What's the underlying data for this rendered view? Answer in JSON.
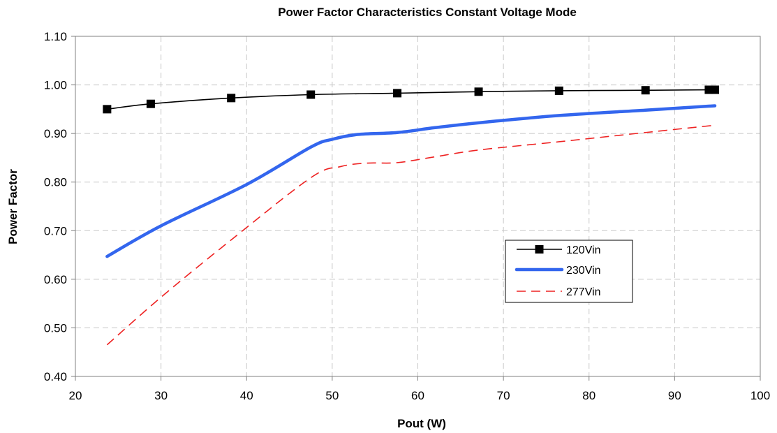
{
  "chart_data": {
    "type": "line",
    "title": "Power Factor Characteristics Constant Voltage Mode",
    "xlabel": "Pout (W)",
    "ylabel": "Power Factor",
    "xlim": [
      20,
      100
    ],
    "ylim": [
      0.4,
      1.1
    ],
    "x_ticks": [
      "20",
      "30",
      "40",
      "50",
      "60",
      "70",
      "80",
      "90",
      "100"
    ],
    "y_ticks": [
      "0.40",
      "0.50",
      "0.60",
      "0.70",
      "0.80",
      "0.90",
      "1.00",
      "1.10"
    ],
    "grid": true,
    "legend_position": "center-right",
    "series": [
      {
        "name": "120Vin",
        "color": "#000000",
        "style": "solid-with-square-markers",
        "points": [
          [
            23.7,
            0.95
          ],
          [
            28.8,
            0.961
          ],
          [
            38.2,
            0.973
          ],
          [
            47.5,
            0.98
          ],
          [
            57.6,
            0.983
          ],
          [
            67.1,
            0.986
          ],
          [
            76.5,
            0.988
          ],
          [
            86.6,
            0.989
          ],
          [
            94.0,
            0.99
          ],
          [
            94.7,
            0.99
          ]
        ]
      },
      {
        "name": "230Vin",
        "color": "#3366ee",
        "style": "thick-solid",
        "points": [
          [
            23.7,
            0.647
          ],
          [
            30,
            0.71
          ],
          [
            40,
            0.795
          ],
          [
            47.5,
            0.872
          ],
          [
            50,
            0.888
          ],
          [
            53,
            0.898
          ],
          [
            57.6,
            0.902
          ],
          [
            62,
            0.912
          ],
          [
            67.1,
            0.922
          ],
          [
            76.5,
            0.937
          ],
          [
            86.6,
            0.948
          ],
          [
            94.7,
            0.957
          ]
        ]
      },
      {
        "name": "277Vin",
        "color": "#ee2222",
        "style": "dashed",
        "points": [
          [
            23.7,
            0.465
          ],
          [
            30,
            0.563
          ],
          [
            38.2,
            0.681
          ],
          [
            47.5,
            0.809
          ],
          [
            51,
            0.832
          ],
          [
            54,
            0.839
          ],
          [
            57.6,
            0.84
          ],
          [
            62,
            0.852
          ],
          [
            67.1,
            0.866
          ],
          [
            76.5,
            0.883
          ],
          [
            86.6,
            0.902
          ],
          [
            94.7,
            0.917
          ]
        ]
      }
    ]
  }
}
